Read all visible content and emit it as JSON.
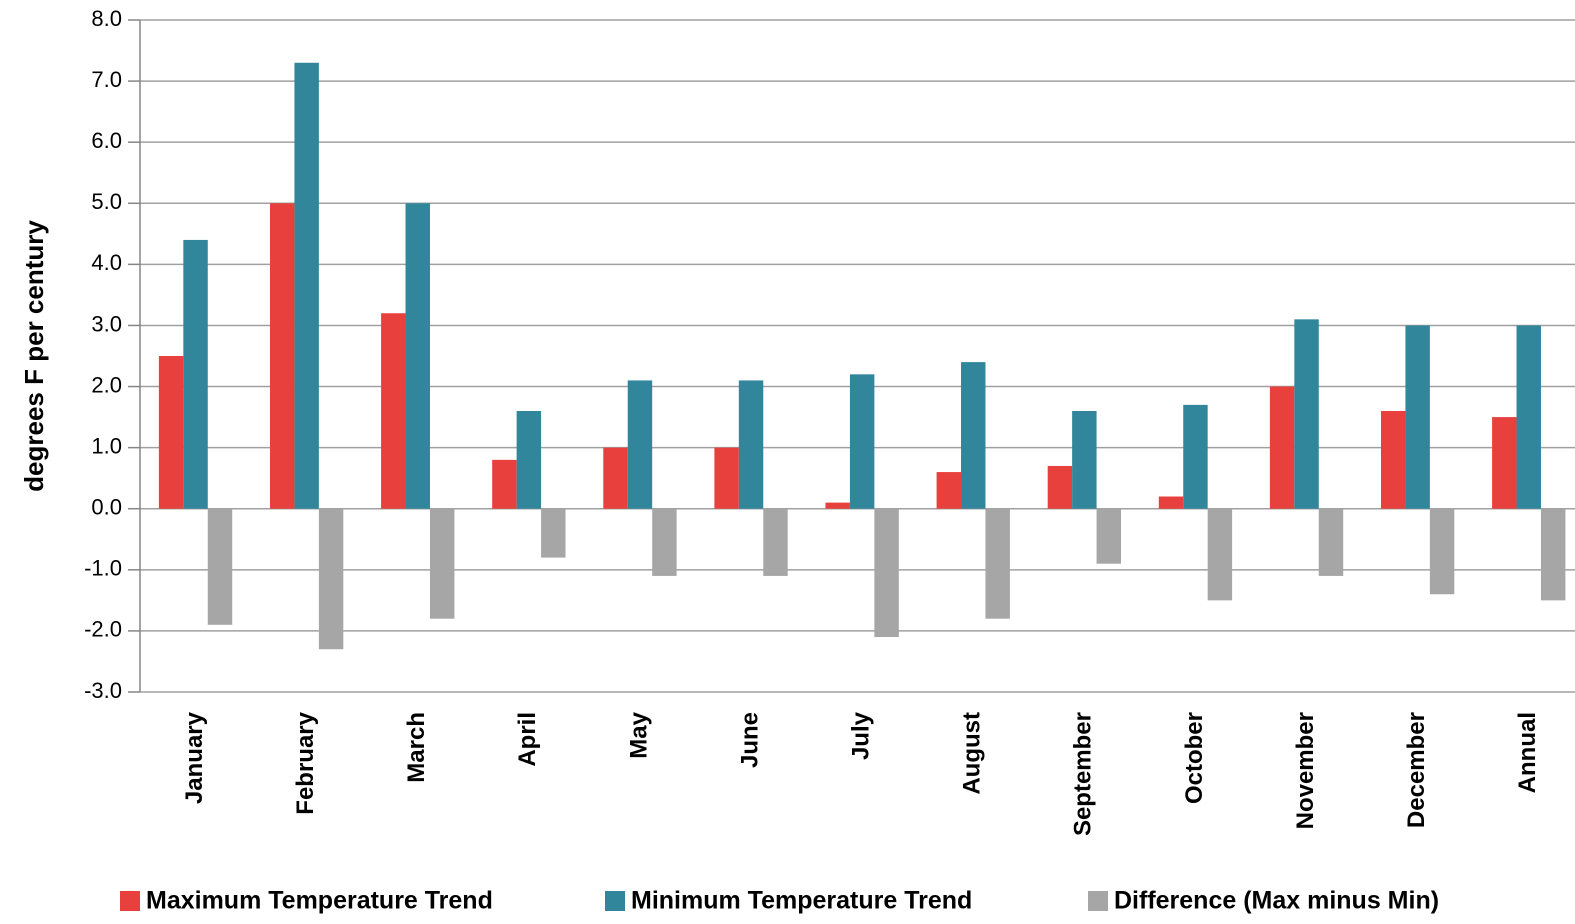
{
  "chart_data": {
    "type": "bar",
    "y_label": "degrees F per century",
    "categories": [
      "January",
      "February",
      "March",
      "April",
      "May",
      "June",
      "July",
      "August",
      "September",
      "October",
      "November",
      "December",
      "Annual"
    ],
    "series": [
      {
        "name": "Maximum Temperature Trend",
        "color": "#e8403c",
        "values": [
          2.5,
          5.0,
          3.2,
          0.8,
          1.0,
          1.0,
          0.1,
          0.6,
          0.7,
          0.2,
          2.0,
          1.6,
          1.5
        ]
      },
      {
        "name": "Minimum Temperature Trend",
        "color": "#31869b",
        "values": [
          4.4,
          7.3,
          5.0,
          1.6,
          2.1,
          2.1,
          2.2,
          2.4,
          1.6,
          1.7,
          3.1,
          3.0,
          3.0
        ]
      },
      {
        "name": "Difference (Max minus Min)",
        "color": "#a6a6a6",
        "values": [
          -1.9,
          -2.3,
          -1.8,
          -0.8,
          -1.1,
          -1.1,
          -2.1,
          -1.8,
          -0.9,
          -1.5,
          -1.1,
          -1.4,
          -1.5
        ]
      }
    ],
    "ylim": [
      -3,
      8
    ],
    "yticks": [
      {
        "value": -3,
        "label": "-3.0"
      },
      {
        "value": -2,
        "label": "-2.0"
      },
      {
        "value": -1,
        "label": "-1.0"
      },
      {
        "value": 0,
        "label": "0.0"
      },
      {
        "value": 1,
        "label": "1.0"
      },
      {
        "value": 2,
        "label": "2.0"
      },
      {
        "value": 3,
        "label": "3.0"
      },
      {
        "value": 4,
        "label": "4.0"
      },
      {
        "value": 5,
        "label": "5.0"
      },
      {
        "value": 6,
        "label": "6.0"
      },
      {
        "value": 7,
        "label": "7.0"
      },
      {
        "value": 8,
        "label": "8.0"
      }
    ],
    "grid": true,
    "legend": "bottom"
  }
}
